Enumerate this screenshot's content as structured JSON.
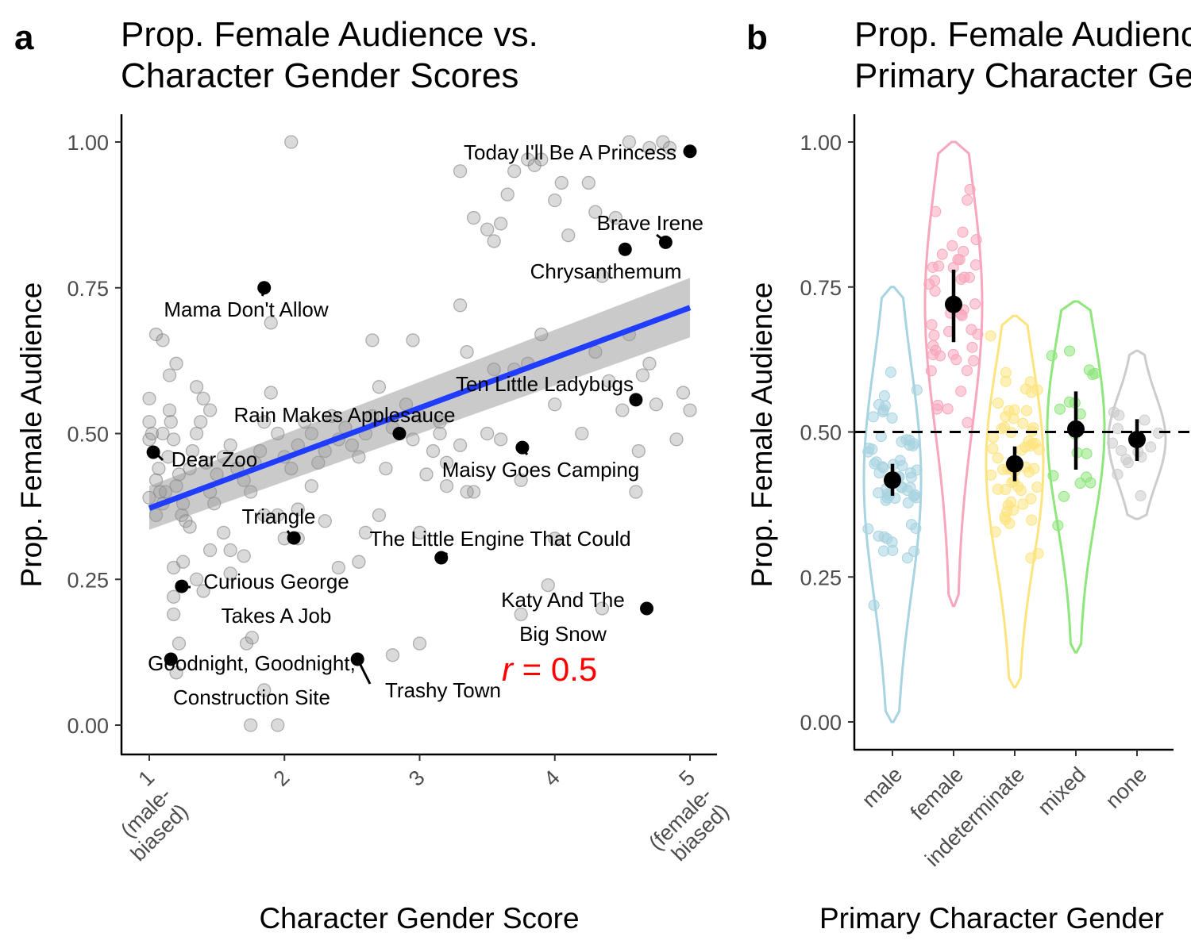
{
  "panel_a": {
    "letter": "a",
    "title_lines": [
      "Prop. Female Audience vs.",
      "Character Gender Scores"
    ],
    "xlabel": "Character Gender Score",
    "ylabel": "Prop. Female Audience",
    "annotation_r": "r",
    "annotation_eq": " = 0.5"
  },
  "panel_b": {
    "letter": "b",
    "title_lines": [
      "Prop. Female Audience by",
      "Primary Character Gender"
    ],
    "xlabel": "Primary Character Gender",
    "ylabel": "Prop. Female Audience"
  },
  "chart_data": [
    {
      "type": "scatter",
      "title": "Prop. Female Audience vs. Character Gender Scores",
      "xlabel": "Character Gender Score",
      "ylabel": "Prop. Female Audience",
      "xlim": [
        0.8,
        5.2
      ],
      "ylim": [
        -0.05,
        1.05
      ],
      "x_ticks": [
        1,
        2,
        3,
        4,
        5
      ],
      "x_tick_labels": [
        [
          "1",
          "(male-",
          "biased)"
        ],
        [
          "2"
        ],
        [
          "3"
        ],
        [
          "4"
        ],
        [
          "5",
          "(female-",
          "biased)"
        ]
      ],
      "y_ticks": [
        0,
        0.25,
        0.5,
        0.75,
        1
      ],
      "y_tick_labels": [
        "0.00",
        "0.25",
        "0.50",
        "0.75",
        "1.00"
      ],
      "correlation": 0.5,
      "regression": {
        "x": [
          1,
          5
        ],
        "y": [
          0.372,
          0.716
        ],
        "ci_low": [
          0.335,
          0.665
        ],
        "ci_high": [
          0.41,
          0.767
        ],
        "color": "#1f3cff"
      },
      "background_points": [
        [
          1.0,
          0.56
        ],
        [
          1.0,
          0.52
        ],
        [
          1.0,
          0.49
        ],
        [
          1.02,
          0.5
        ],
        [
          1.0,
          0.39
        ],
        [
          1.05,
          0.42
        ],
        [
          1.07,
          0.44
        ],
        [
          1.1,
          0.38
        ],
        [
          1.12,
          0.4
        ],
        [
          1.14,
          0.46
        ],
        [
          1.15,
          0.54
        ],
        [
          1.16,
          0.52
        ],
        [
          1.18,
          0.49
        ],
        [
          1.2,
          0.41
        ],
        [
          1.22,
          0.43
        ],
        [
          1.24,
          0.36
        ],
        [
          1.25,
          0.38
        ],
        [
          1.27,
          0.35
        ],
        [
          1.3,
          0.44
        ],
        [
          1.32,
          0.47
        ],
        [
          1.35,
          0.5
        ],
        [
          1.38,
          0.52
        ],
        [
          1.4,
          0.56
        ],
        [
          1.42,
          0.45
        ],
        [
          1.45,
          0.4
        ],
        [
          1.48,
          0.38
        ],
        [
          1.5,
          0.43
        ],
        [
          1.55,
          0.46
        ],
        [
          1.6,
          0.48
        ],
        [
          1.65,
          0.44
        ],
        [
          1.7,
          0.42
        ],
        [
          1.75,
          0.4
        ],
        [
          1.78,
          0.45
        ],
        [
          1.82,
          0.47
        ],
        [
          1.85,
          0.52
        ],
        [
          1.9,
          0.57
        ],
        [
          1.95,
          0.5
        ],
        [
          2.0,
          0.46
        ],
        [
          2.05,
          0.44
        ],
        [
          2.1,
          0.48
        ],
        [
          2.15,
          0.52
        ],
        [
          2.2,
          0.5
        ],
        [
          2.25,
          0.45
        ],
        [
          2.3,
          0.47
        ],
        [
          2.35,
          0.53
        ],
        [
          2.4,
          0.49
        ],
        [
          2.45,
          0.51
        ],
        [
          2.5,
          0.48
        ],
        [
          2.55,
          0.46
        ],
        [
          2.6,
          0.5
        ],
        [
          2.65,
          0.53
        ],
        [
          2.7,
          0.58
        ],
        [
          2.75,
          0.44
        ],
        [
          2.8,
          0.51
        ],
        [
          2.9,
          0.55
        ],
        [
          2.95,
          0.49
        ],
        [
          3.0,
          0.53
        ],
        [
          3.05,
          0.43
        ],
        [
          3.1,
          0.47
        ],
        [
          3.15,
          0.5
        ],
        [
          3.2,
          0.45
        ],
        [
          3.3,
          0.48
        ],
        [
          3.35,
          0.64
        ],
        [
          3.4,
          0.4
        ],
        [
          3.5,
          0.5
        ],
        [
          3.6,
          0.49
        ],
        [
          3.7,
          0.61
        ],
        [
          3.75,
          0.42
        ],
        [
          3.8,
          0.62
        ],
        [
          3.9,
          0.67
        ],
        [
          4.0,
          0.55
        ],
        [
          4.2,
          0.5
        ],
        [
          4.3,
          0.64
        ],
        [
          4.4,
          0.59
        ],
        [
          4.5,
          0.54
        ],
        [
          4.55,
          0.67
        ],
        [
          4.6,
          0.4
        ],
        [
          4.62,
          0.47
        ],
        [
          4.65,
          0.6
        ],
        [
          4.7,
          0.62
        ],
        [
          4.75,
          0.55
        ],
        [
          4.9,
          0.49
        ],
        [
          4.95,
          0.57
        ],
        [
          5.0,
          0.54
        ],
        [
          1.05,
          0.67
        ],
        [
          1.15,
          0.6
        ],
        [
          1.2,
          0.62
        ],
        [
          1.35,
          0.58
        ],
        [
          1.45,
          0.54
        ],
        [
          1.55,
          0.33
        ],
        [
          1.6,
          0.3
        ],
        [
          1.7,
          0.29
        ],
        [
          1.72,
          0.14
        ],
        [
          1.76,
          0.15
        ],
        [
          1.6,
          0.26
        ],
        [
          1.4,
          0.23
        ],
        [
          1.35,
          0.25
        ],
        [
          1.25,
          0.28
        ],
        [
          1.18,
          0.27
        ],
        [
          1.18,
          0.22
        ],
        [
          1.18,
          0.19
        ],
        [
          1.22,
          0.14
        ],
        [
          1.2,
          0.09
        ],
        [
          1.85,
          0.36
        ],
        [
          1.95,
          0.36
        ],
        [
          2.0,
          0.32
        ],
        [
          2.1,
          0.32
        ],
        [
          2.3,
          0.35
        ],
        [
          2.4,
          0.27
        ],
        [
          2.55,
          0.28
        ],
        [
          2.6,
          0.33
        ],
        [
          2.7,
          0.36
        ],
        [
          2.8,
          0.12
        ],
        [
          3.0,
          0.33
        ],
        [
          3.0,
          0.14
        ],
        [
          1.75,
          0.0
        ],
        [
          1.85,
          0.06
        ],
        [
          1.95,
          0.0
        ],
        [
          2.05,
          1.0
        ],
        [
          1.9,
          0.69
        ],
        [
          1.1,
          0.66
        ],
        [
          2.65,
          0.66
        ],
        [
          2.95,
          0.66
        ],
        [
          3.3,
          0.72
        ],
        [
          3.4,
          0.87
        ],
        [
          3.5,
          0.85
        ],
        [
          3.55,
          0.83
        ],
        [
          3.6,
          0.86
        ],
        [
          3.65,
          0.91
        ],
        [
          3.7,
          0.95
        ],
        [
          3.8,
          0.97
        ],
        [
          3.85,
          0.96
        ],
        [
          3.9,
          0.97
        ],
        [
          4.0,
          0.9
        ],
        [
          4.05,
          0.93
        ],
        [
          4.1,
          0.84
        ],
        [
          4.25,
          0.93
        ],
        [
          4.3,
          0.88
        ],
        [
          4.35,
          0.77
        ],
        [
          4.45,
          0.87
        ],
        [
          4.55,
          1.0
        ],
        [
          4.7,
          0.99
        ],
        [
          4.8,
          1.0
        ],
        [
          4.85,
          0.99
        ],
        [
          3.3,
          0.95
        ],
        [
          3.15,
          0.52
        ],
        [
          3.2,
          0.41
        ],
        [
          3.55,
          0.61
        ],
        [
          3.75,
          0.19
        ],
        [
          3.95,
          0.24
        ],
        [
          4.0,
          0.32
        ],
        [
          4.35,
          0.2
        ],
        [
          3.35,
          0.4
        ],
        [
          2.2,
          0.41
        ],
        [
          2.1,
          0.37
        ],
        [
          1.3,
          0.34
        ],
        [
          1.45,
          0.3
        ],
        [
          1.05,
          0.36
        ],
        [
          1.08,
          0.4
        ],
        [
          1.1,
          0.5
        ]
      ],
      "labeled_points": [
        {
          "name": "Today I'll Be A Princess",
          "x": 5.0,
          "y": 0.984
        },
        {
          "name": "Brave Irene",
          "x": 4.82,
          "y": 0.828
        },
        {
          "name": "Chrysanthemum",
          "x": 4.52,
          "y": 0.816
        },
        {
          "name": "Mama Don't Allow",
          "x": 1.85,
          "y": 0.75
        },
        {
          "name": "Ten Little Ladybugs",
          "x": 4.6,
          "y": 0.558
        },
        {
          "name": "Rain Makes Applesauce",
          "x": 2.85,
          "y": 0.5
        },
        {
          "name": "Maisy Goes Camping",
          "x": 3.76,
          "y": 0.476
        },
        {
          "name": "Dear Zoo",
          "x": 1.03,
          "y": 0.468
        },
        {
          "name": "Triangle",
          "x": 2.07,
          "y": 0.321
        },
        {
          "name": "The Little Engine That Could",
          "x": 3.16,
          "y": 0.287
        },
        {
          "name": "Curious George Takes A Job",
          "x": 1.24,
          "y": 0.238
        },
        {
          "name": "Katy And The Big Snow",
          "x": 4.68,
          "y": 0.2
        },
        {
          "name": "Goodnight, Goodnight, Construction Site",
          "x": 1.16,
          "y": 0.113
        },
        {
          "name": "Trashy Town",
          "x": 2.54,
          "y": 0.113
        }
      ],
      "label_texts": {
        "princess": "Today I'll Be A Princess",
        "brave": "Brave Irene",
        "chrys": "Chrysanthemum",
        "mama": "Mama Don't Allow",
        "ladybugs": "Ten Little Ladybugs",
        "rain": "Rain Makes Applesauce",
        "maisy": "Maisy Goes Camping",
        "dearzoo": "Dear Zoo",
        "triangle": "Triangle",
        "engine": "The Little Engine That Could",
        "george1": "Curious George",
        "george2": "Takes A Job",
        "katy1": "Katy And The",
        "katy2": "Big Snow",
        "goodnight1": "Goodnight, Goodnight,",
        "goodnight2": "Construction Site",
        "trashy": "Trashy Town"
      }
    },
    {
      "type": "violin",
      "title": "Prop. Female Audience by Primary Character Gender",
      "xlabel": "Primary Character Gender",
      "ylabel": "Prop. Female Audience",
      "ylim": [
        -0.05,
        1.05
      ],
      "y_ticks": [
        0,
        0.25,
        0.5,
        0.75,
        1
      ],
      "y_tick_labels": [
        "0.00",
        "0.25",
        "0.50",
        "0.75",
        "1.00"
      ],
      "reference_line": 0.5,
      "categories": [
        "male",
        "female",
        "indeterminate",
        "mixed",
        "none"
      ],
      "colors": [
        "#a8d3e0",
        "#f7a6bc",
        "#fde47f",
        "#8ee67c",
        "#cccccc"
      ],
      "means": [
        0.417,
        0.72,
        0.445,
        0.505,
        0.487
      ],
      "ci_low": [
        0.39,
        0.655,
        0.415,
        0.435,
        0.45
      ],
      "ci_high": [
        0.445,
        0.78,
        0.475,
        0.57,
        0.522
      ],
      "ranges": [
        [
          0.0,
          0.75
        ],
        [
          0.2,
          1.0
        ],
        [
          0.06,
          0.7
        ],
        [
          0.12,
          0.725
        ],
        [
          0.35,
          0.64
        ]
      ]
    }
  ]
}
